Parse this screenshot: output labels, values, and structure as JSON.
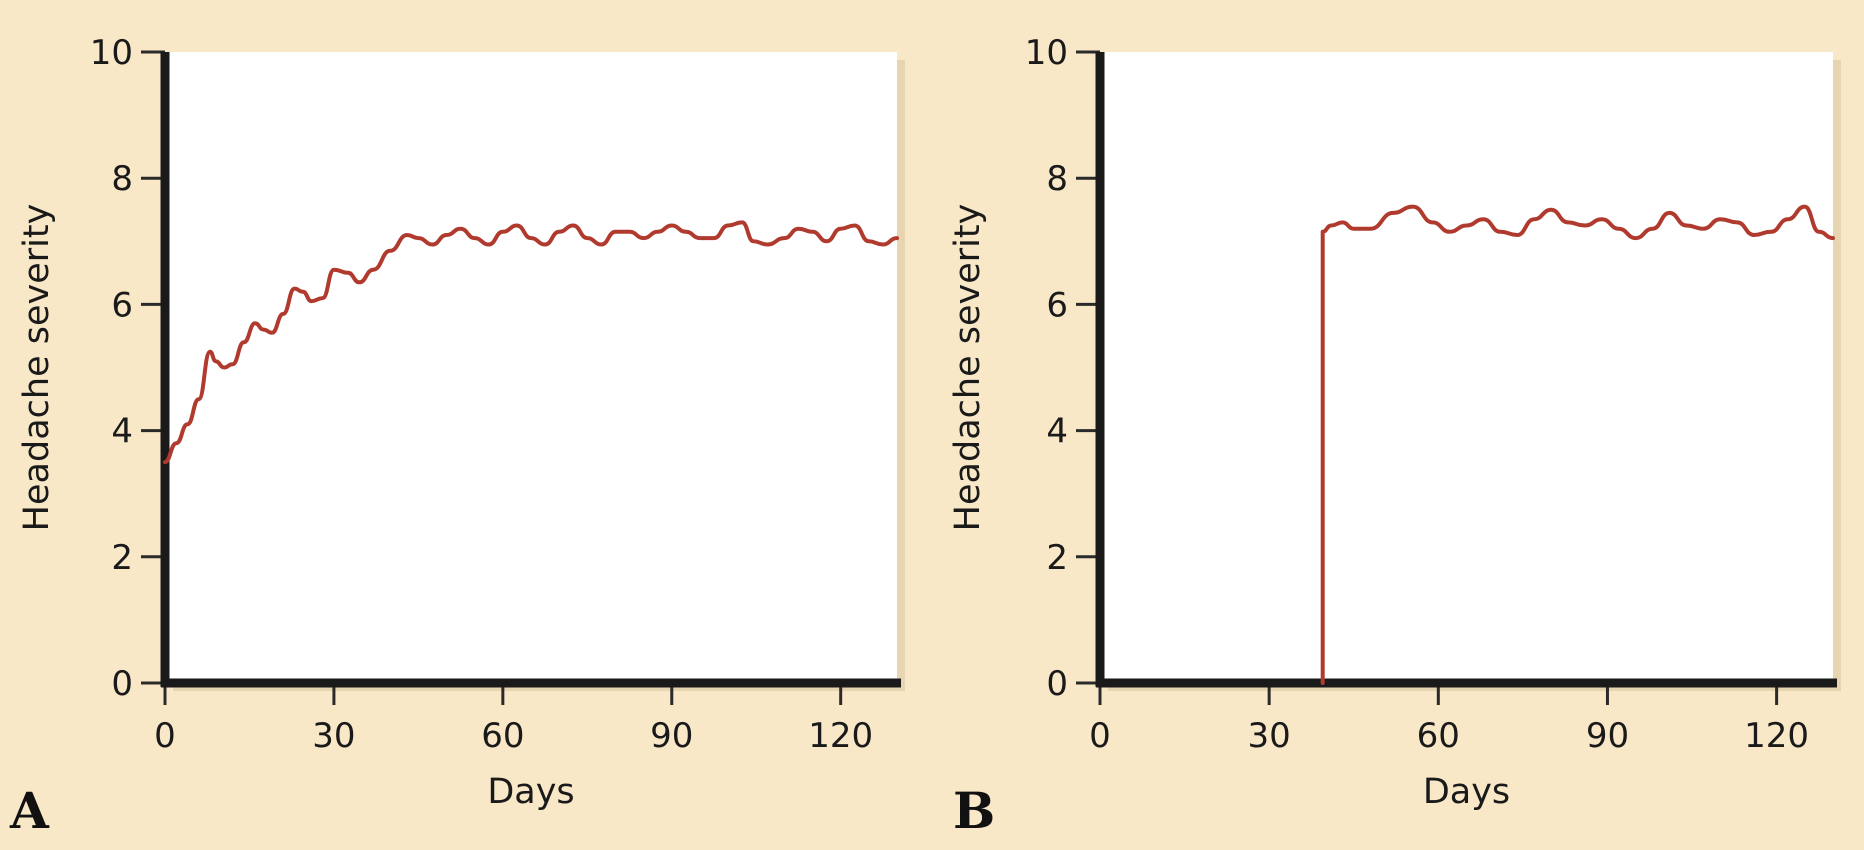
{
  "chart_data": [
    {
      "type": "line",
      "panel_label": "A",
      "xlabel": "Days",
      "ylabel": "Headache severity",
      "xlim": [
        0,
        130
      ],
      "ylim": [
        0,
        10
      ],
      "x_ticks": [
        "0",
        "30",
        "60",
        "90",
        "120"
      ],
      "y_ticks": [
        "0",
        "2",
        "4",
        "6",
        "8",
        "10"
      ],
      "grid": false,
      "line_color": "#b03a2e",
      "series": [
        {
          "x": [
            0,
            2,
            4,
            6,
            8,
            9,
            10.5,
            12,
            14,
            16,
            17.5,
            19,
            21,
            23,
            24.5,
            26,
            28,
            30,
            32.5,
            34.5,
            37,
            40,
            43,
            45,
            47.5,
            50,
            52.5,
            55,
            57.5,
            60,
            62.5,
            65,
            67.5,
            70,
            72.5,
            75,
            77.5,
            80,
            82.5,
            85,
            87.5,
            90,
            92.5,
            95,
            97.5,
            100,
            102.5,
            104.5,
            107,
            110,
            112.5,
            115,
            117.5,
            120,
            122.5,
            125,
            127.5,
            130
          ],
          "y": [
            3.5,
            3.8,
            4.1,
            4.5,
            5.25,
            5.1,
            5.0,
            5.05,
            5.4,
            5.7,
            5.6,
            5.55,
            5.85,
            6.25,
            6.2,
            6.05,
            6.1,
            6.55,
            6.5,
            6.35,
            6.55,
            6.85,
            7.1,
            7.05,
            6.95,
            7.1,
            7.2,
            7.05,
            6.95,
            7.15,
            7.25,
            7.05,
            6.95,
            7.15,
            7.25,
            7.05,
            6.95,
            7.15,
            7.15,
            7.05,
            7.15,
            7.25,
            7.15,
            7.05,
            7.05,
            7.25,
            7.3,
            7.0,
            6.95,
            7.05,
            7.2,
            7.15,
            7.0,
            7.2,
            7.25,
            7.0,
            6.95,
            7.05
          ]
        }
      ]
    },
    {
      "type": "line",
      "panel_label": "B",
      "xlabel": "Days",
      "ylabel": "Headache severity",
      "xlim": [
        0,
        130
      ],
      "ylim": [
        0,
        10
      ],
      "x_ticks": [
        "0",
        "30",
        "60",
        "90",
        "120"
      ],
      "y_ticks": [
        "0",
        "2",
        "4",
        "6",
        "8",
        "10"
      ],
      "grid": false,
      "line_color": "#b03a2e",
      "series": [
        {
          "x": [
            39.5,
            39.5,
            41,
            43,
            45,
            48,
            52,
            55.5,
            59,
            62,
            65,
            68,
            71,
            74,
            77,
            80,
            83,
            86,
            89,
            92,
            95,
            98,
            101,
            104,
            107,
            110,
            113,
            116,
            119,
            122,
            125,
            127.5,
            130
          ],
          "y": [
            0,
            7.15,
            7.25,
            7.3,
            7.2,
            7.2,
            7.45,
            7.55,
            7.3,
            7.15,
            7.25,
            7.35,
            7.15,
            7.1,
            7.35,
            7.5,
            7.3,
            7.25,
            7.35,
            7.2,
            7.05,
            7.2,
            7.45,
            7.25,
            7.2,
            7.35,
            7.3,
            7.1,
            7.15,
            7.35,
            7.55,
            7.15,
            7.05
          ]
        }
      ]
    }
  ]
}
